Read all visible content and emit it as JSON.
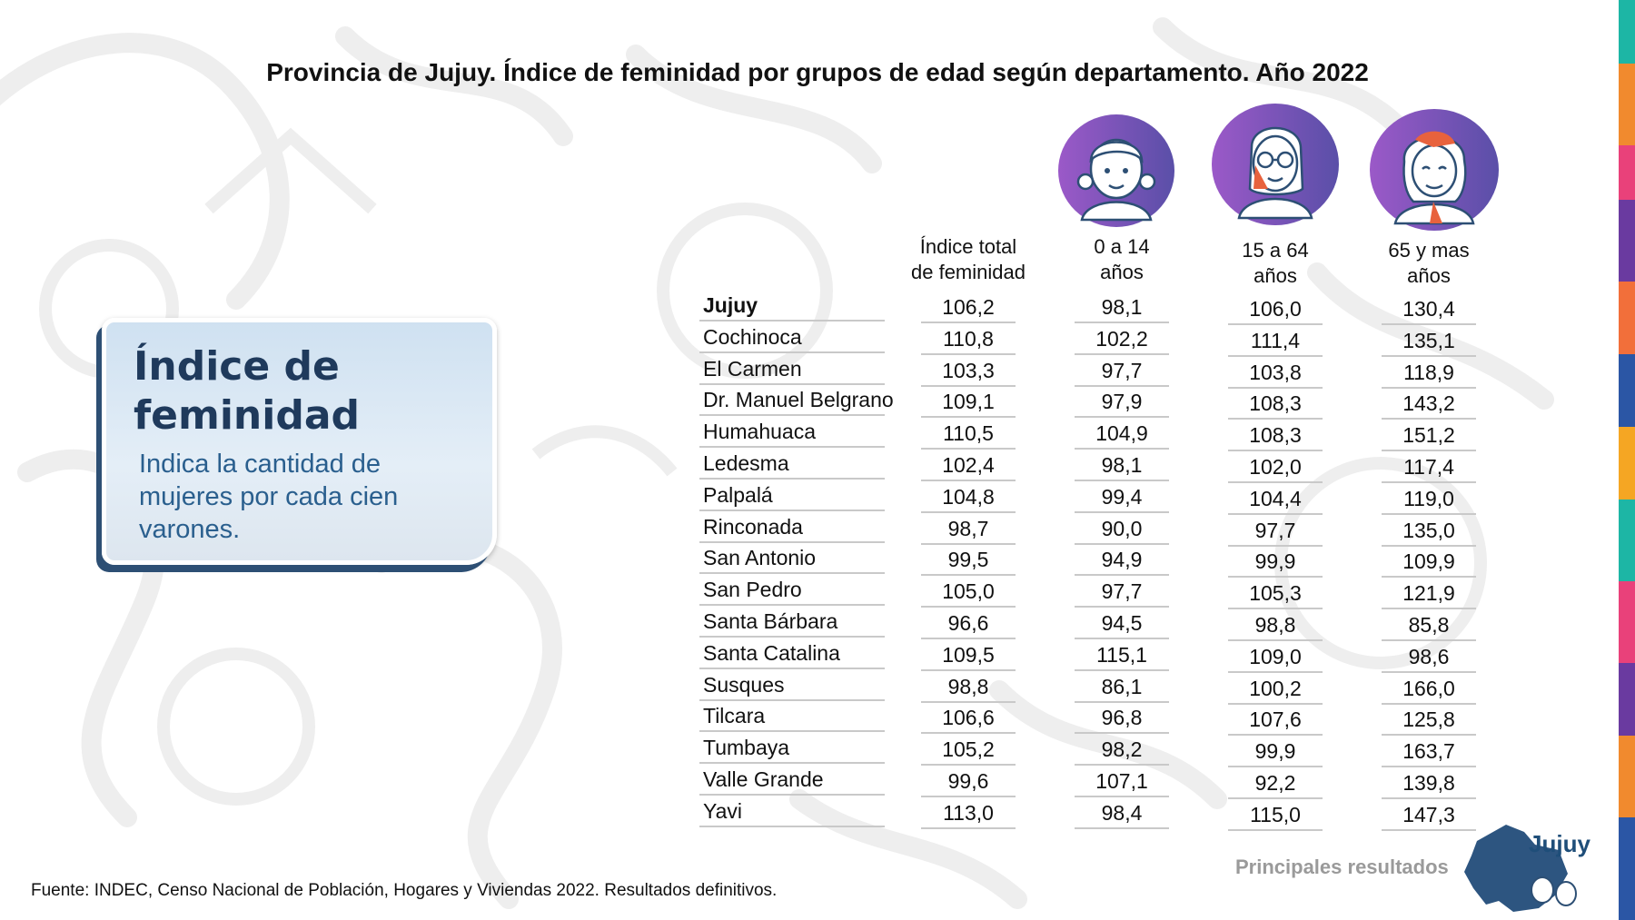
{
  "chart_data": {
    "type": "table",
    "title": "Provincia de Jujuy. Índice de feminidad por grupos de edad según departamento. Año 2022",
    "columns": [
      {
        "key": "total",
        "label_line1": "Índice total",
        "label_line2": "de feminidad",
        "icon": "girl-avatar-icon"
      },
      {
        "key": "age_0_14",
        "label_line1": "0 a 14",
        "label_line2": "años",
        "icon": "girl-avatar-icon"
      },
      {
        "key": "age_15_64",
        "label_line1": "15 a 64",
        "label_line2": "años",
        "icon": "woman-avatar-icon"
      },
      {
        "key": "age_65",
        "label_line1": "65 y mas",
        "label_line2": "años",
        "icon": "elder-woman-avatar-icon"
      }
    ],
    "rows": [
      {
        "name": "Jujuy",
        "values": [
          "106,2",
          "98,1",
          "106,0",
          "130,4"
        ]
      },
      {
        "name": "Cochinoca",
        "values": [
          "110,8",
          "102,2",
          "111,4",
          "135,1"
        ]
      },
      {
        "name": "El Carmen",
        "values": [
          "103,3",
          "97,7",
          "103,8",
          "118,9"
        ]
      },
      {
        "name": "Dr. Manuel Belgrano",
        "values": [
          "109,1",
          "97,9",
          "108,3",
          "143,2"
        ]
      },
      {
        "name": "Humahuaca",
        "values": [
          "110,5",
          "104,9",
          "108,3",
          "151,2"
        ]
      },
      {
        "name": "Ledesma",
        "values": [
          "102,4",
          "98,1",
          "102,0",
          "117,4"
        ]
      },
      {
        "name": "Palpalá",
        "values": [
          "104,8",
          "99,4",
          "104,4",
          "119,0"
        ]
      },
      {
        "name": "Rinconada",
        "values": [
          "98,7",
          "90,0",
          "97,7",
          "135,0"
        ]
      },
      {
        "name": "San Antonio",
        "values": [
          "99,5",
          "94,9",
          "99,9",
          "109,9"
        ]
      },
      {
        "name": "San Pedro",
        "values": [
          "105,0",
          "97,7",
          "105,3",
          "121,9"
        ]
      },
      {
        "name": "Santa Bárbara",
        "values": [
          "96,6",
          "94,5",
          "98,8",
          "85,8"
        ]
      },
      {
        "name": "Santa Catalina",
        "values": [
          "109,5",
          "115,1",
          "109,0",
          "98,6"
        ]
      },
      {
        "name": "Susques",
        "values": [
          "98,8",
          "86,1",
          "100,2",
          "166,0"
        ]
      },
      {
        "name": "Tilcara",
        "values": [
          "106,6",
          "96,8",
          "107,6",
          "125,8"
        ]
      },
      {
        "name": "Tumbaya",
        "values": [
          "105,2",
          "98,2",
          "99,9",
          "163,7"
        ]
      },
      {
        "name": "Valle Grande",
        "values": [
          "99,6",
          "107,1",
          "92,2",
          "139,8"
        ]
      },
      {
        "name": "Yavi",
        "values": [
          "113,0",
          "98,4",
          "115,0",
          "147,3"
        ]
      }
    ]
  },
  "callout": {
    "title_line1": "Índice de",
    "title_line2": "feminidad",
    "body_line1": "Indica la cantidad de",
    "body_line2": "mujeres por cada cien",
    "body_line3": "varones."
  },
  "footer": {
    "source": "Fuente: INDEC, Censo Nacional de Población, Hogares y Viviendas 2022. Resultados definitivos.",
    "brand_subtitle": "Principales resultados",
    "brand_name": "Jujuy"
  },
  "colors": {
    "title": "#111111",
    "callout_title": "#1f3a5c",
    "callout_body": "#2a5f8e",
    "avatar_purple": "#7b55b0",
    "map_blue": "#2d5580",
    "brand_gray": "#9a9a9a"
  }
}
